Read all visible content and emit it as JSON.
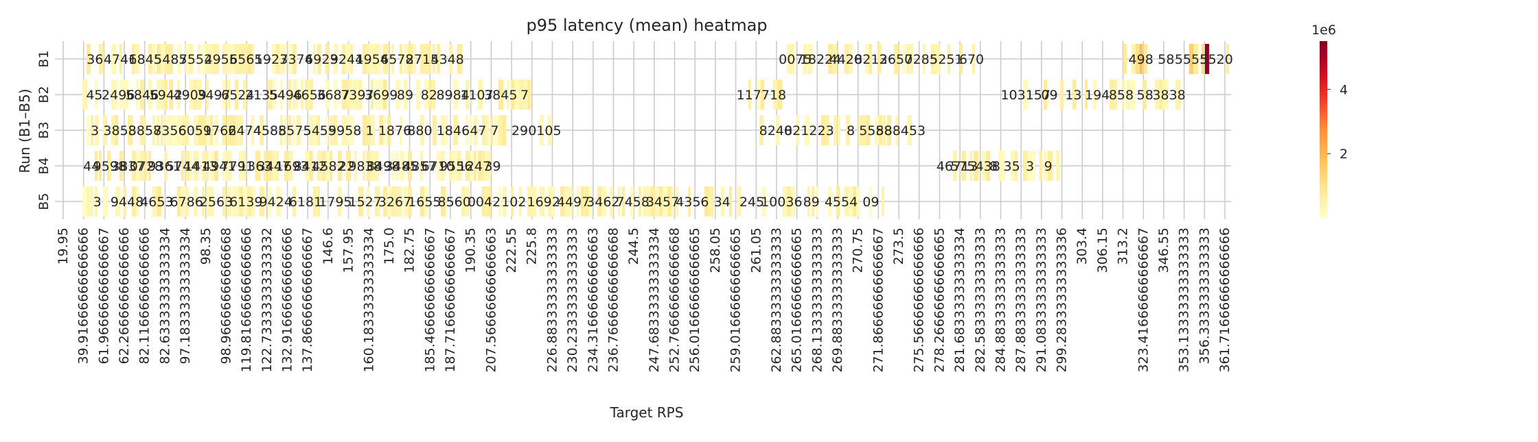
{
  "chart_data": {
    "type": "heatmap",
    "title": "p95 latency (mean) heatmap",
    "xlabel": "Target RPS",
    "ylabel": "Run (B1–B5)",
    "rows": [
      "B1",
      "B2",
      "B3",
      "B4",
      "B5"
    ],
    "x_tick_labels": [
      "19.95",
      "39.91666666666666",
      "61.96666666666667",
      "62.26666666666666",
      "82.11666666666666",
      "82.63333333333334",
      "97.18333333333334",
      "98.35",
      "98.96666666666668",
      "119.81666666666666",
      "122.73333333333332",
      "132.91666666666666",
      "137.86666666666667",
      "146.6",
      "157.95",
      "160.18333333333334",
      "175.0",
      "182.75",
      "185.46666666666667",
      "187.71666666666667",
      "190.35",
      "207.56666666666663",
      "222.55",
      "225.8",
      "226.88333333333333",
      "230.23333333333333",
      "234.31666666666663",
      "236.76666666666668",
      "244.5",
      "247.68333333333334",
      "252.76666666666668",
      "256.01666666666665",
      "258.05",
      "259.01666666666665",
      "261.05",
      "262.88333333333333",
      "265.01666666666665",
      "268.13333333333333",
      "269.88333333333333",
      "270.75",
      "271.86666666666667",
      "273.5",
      "275.56666666666666",
      "278.26666666666665",
      "281.68333333333334",
      "282.58333333333333",
      "284.88333333333333",
      "287.88333333333333",
      "291.08333333333333",
      "299.28333333333336",
      "303.4",
      "306.15",
      "313.2",
      "323.41666666666667",
      "346.55",
      "353.13333333333333",
      "356.3333333333333",
      "361.71666666666666"
    ],
    "row_labels_text": [
      [
        "36",
        "4741",
        "6845",
        "5485",
        "7552",
        "4955",
        "6565",
        "1923",
        "7374",
        "6923",
        "9244",
        "1954",
        "6578",
        "2715",
        "4348",
        "0075",
        "18224",
        "4420",
        "8213",
        "2650",
        "7285",
        "5251",
        "670",
        "498",
        "58",
        "5555",
        "5520"
      ],
      [
        "45",
        "2496",
        "5846",
        "5942",
        "4909",
        "3497",
        "6524",
        "2135",
        "5496",
        "4656",
        "3687",
        "7397",
        "3699",
        "89",
        "82",
        "8984",
        "1107",
        "3845",
        "7",
        "117718",
        "103157",
        "09",
        "13",
        "194",
        "858",
        "58",
        "3838"
      ],
      [
        "3",
        "3858",
        "3858",
        "7356",
        "6059",
        "1766",
        "2474",
        "4585",
        "8575",
        "5455",
        "9958",
        "1",
        "1876",
        "880",
        "18",
        "4647",
        "7",
        "29",
        "0105",
        "8240",
        "8212",
        "23",
        "8",
        "5588",
        "588453"
      ],
      [
        "44",
        "9598",
        "3837",
        "0728",
        "9361",
        "5744",
        "1413",
        "4941",
        "7791",
        "1363",
        "3447",
        "1693",
        "8412",
        "4582",
        "22",
        "9838",
        "8498",
        "3485",
        "4857",
        "6710",
        "9556",
        "1247",
        "39",
        "46713",
        "575438",
        "8",
        "35",
        "3",
        "9"
      ],
      [
        "3",
        "9448",
        "4653",
        "6786",
        "2563",
        "6139",
        "9424",
        "6181",
        "1795",
        "1527",
        "3267",
        "1655",
        "8560",
        "0042",
        "102",
        "1692",
        "4497",
        "3462",
        "7458",
        "3457",
        "4356",
        "34",
        "245",
        "10036",
        "89",
        "4554",
        "09"
      ]
    ],
    "colorbar": {
      "ticks": [
        2,
        4
      ],
      "offset_label": "1e6",
      "range": [
        0,
        5.5
      ],
      "colormap": "YlOrRd"
    },
    "grid": true
  }
}
